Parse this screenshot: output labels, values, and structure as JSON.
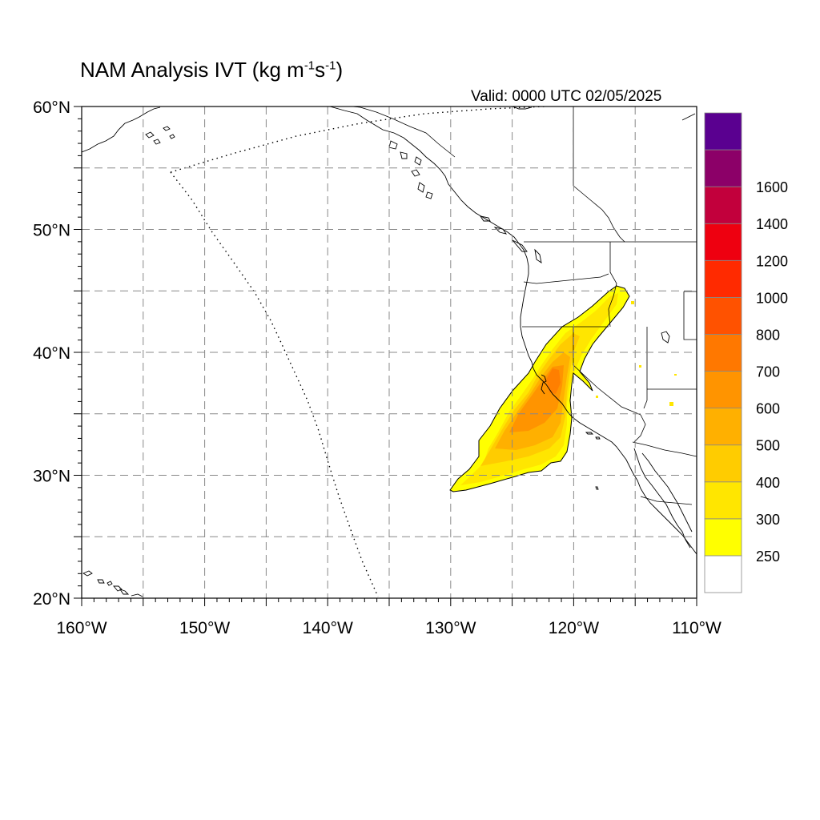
{
  "title": {
    "prefix": "NAM Analysis IVT (kg m",
    "exp1": "-1",
    "mid": "s",
    "exp2": "-1",
    "suffix": ")"
  },
  "valid_label": "Valid: 0000 UTC 02/05/2025",
  "map": {
    "lon_range": [
      -160,
      -110
    ],
    "lat_range": [
      20,
      60
    ],
    "lon_ticks": [
      -160,
      -150,
      -140,
      -130,
      -120,
      -110
    ],
    "lat_ticks": [
      20,
      30,
      40,
      50,
      60
    ],
    "lon_tick_labels": [
      "160°W",
      "150°W",
      "140°W",
      "130°W",
      "120°W",
      "110°W"
    ],
    "lat_tick_labels": [
      "20°N",
      "30°N",
      "40°N",
      "50°N",
      "60°N"
    ],
    "grid_interval_deg": 5,
    "grid": true,
    "domain_boundary": "dotted"
  },
  "colorbar": {
    "levels": [
      "250",
      "300",
      "400",
      "500",
      "600",
      "700",
      "800",
      "1000",
      "1200",
      "1400",
      "1600"
    ],
    "colors": [
      "#ffff00",
      "#ffe600",
      "#ffcc00",
      "#ffb000",
      "#ff9400",
      "#ff7800",
      "#ff5200",
      "#ff2a00",
      "#ee0010",
      "#c2003c",
      "#8c0068",
      "#5a0090"
    ],
    "below_min_color": "#ffffff"
  }
}
